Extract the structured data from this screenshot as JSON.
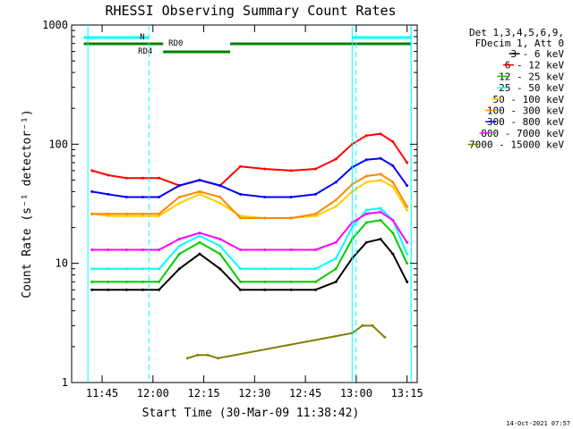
{
  "chart_data": {
    "type": "line",
    "title": "RHESSI Observing Summary Count Rates",
    "xlabel": "Start Time (30-Mar-09 11:38:42)",
    "ylabel": "Count Rate (s⁻¹ detector⁻¹)",
    "yscale": "log",
    "ylim": [
      1,
      1000
    ],
    "xlim_minutes": [
      11.6,
      13.3
    ],
    "x_ticks": [
      "11:45",
      "12:00",
      "12:15",
      "12:30",
      "12:45",
      "13:00",
      "13:15"
    ],
    "y_ticks": [
      "1",
      "10",
      "100",
      "1000"
    ],
    "legend_header": [
      "Det 1,3,4,5,6,9,",
      "FDecim 1, Att 0"
    ],
    "legend_placement": "right",
    "timestamp": "14-Oct-2021 07:57",
    "series": [
      {
        "name": "3 - 6 keV",
        "color": "#000000",
        "times": [
          11.7,
          11.78,
          11.87,
          11.95,
          12.03,
          12.13,
          12.23,
          12.33,
          12.43,
          12.55,
          12.68,
          12.8,
          12.9,
          12.98,
          13.05,
          13.12,
          13.18,
          13.25
        ],
        "values": [
          6,
          6,
          6,
          6,
          6,
          9,
          12,
          9,
          6,
          6,
          6,
          6,
          7,
          11,
          15,
          16,
          12,
          7
        ]
      },
      {
        "name": "6 - 12 keV",
        "color": "#ff0000",
        "times": [
          11.7,
          11.78,
          11.87,
          11.95,
          12.03,
          12.13,
          12.23,
          12.33,
          12.43,
          12.55,
          12.68,
          12.8,
          12.9,
          12.98,
          13.05,
          13.12,
          13.18,
          13.25
        ],
        "values": [
          60,
          55,
          52,
          52,
          52,
          45,
          50,
          45,
          65,
          62,
          60,
          62,
          75,
          100,
          118,
          122,
          105,
          70
        ]
      },
      {
        "name": "12 - 25 keV",
        "color": "#00cc00",
        "times": [
          11.7,
          11.78,
          11.87,
          11.95,
          12.03,
          12.13,
          12.23,
          12.33,
          12.43,
          12.55,
          12.68,
          12.8,
          12.9,
          12.98,
          13.05,
          13.12,
          13.18,
          13.25
        ],
        "values": [
          7,
          7,
          7,
          7,
          7,
          12,
          15,
          12,
          7,
          7,
          7,
          7,
          9,
          16,
          22,
          23,
          18,
          10
        ]
      },
      {
        "name": "25 - 50 keV",
        "color": "#00ffff",
        "times": [
          11.7,
          11.78,
          11.87,
          11.95,
          12.03,
          12.13,
          12.23,
          12.33,
          12.43,
          12.55,
          12.68,
          12.8,
          12.9,
          12.98,
          13.05,
          13.12,
          13.18,
          13.25
        ],
        "values": [
          9,
          9,
          9,
          9,
          9,
          14,
          17,
          14,
          9,
          9,
          9,
          9,
          11,
          20,
          28,
          29,
          23,
          12
        ]
      },
      {
        "name": "50 - 100 keV",
        "color": "#ffcc00",
        "times": [
          11.7,
          11.78,
          11.87,
          11.95,
          12.03,
          12.13,
          12.23,
          12.33,
          12.43,
          12.55,
          12.68,
          12.8,
          12.9,
          12.98,
          13.05,
          13.12,
          13.18,
          13.25
        ],
        "values": [
          26,
          25,
          25,
          25,
          25,
          32,
          38,
          32,
          25,
          24,
          24,
          25,
          30,
          40,
          48,
          50,
          44,
          28
        ]
      },
      {
        "name": "100 - 300 keV",
        "color": "#ff8800",
        "times": [
          11.7,
          11.78,
          11.87,
          11.95,
          12.03,
          12.13,
          12.23,
          12.33,
          12.43,
          12.55,
          12.68,
          12.8,
          12.9,
          12.98,
          13.05,
          13.12,
          13.18,
          13.25
        ],
        "values": [
          26,
          26,
          26,
          26,
          26,
          36,
          40,
          36,
          24,
          24,
          24,
          26,
          34,
          46,
          54,
          56,
          48,
          30
        ]
      },
      {
        "name": "300 - 800 keV",
        "color": "#0000ff",
        "times": [
          11.7,
          11.78,
          11.87,
          11.95,
          12.03,
          12.13,
          12.23,
          12.33,
          12.43,
          12.55,
          12.68,
          12.8,
          12.9,
          12.98,
          13.05,
          13.12,
          13.18,
          13.25
        ],
        "values": [
          40,
          38,
          36,
          36,
          36,
          45,
          50,
          45,
          38,
          36,
          36,
          38,
          48,
          64,
          74,
          76,
          66,
          45
        ]
      },
      {
        "name": "800 - 7000 keV",
        "color": "#ff00ff",
        "times": [
          11.7,
          11.78,
          11.87,
          11.95,
          12.03,
          12.13,
          12.23,
          12.33,
          12.43,
          12.55,
          12.68,
          12.8,
          12.9,
          12.98,
          13.05,
          13.12,
          13.18,
          13.25
        ],
        "values": [
          13,
          13,
          13,
          13,
          13,
          16,
          18,
          16,
          13,
          13,
          13,
          13,
          15,
          22,
          26,
          27,
          23,
          15
        ]
      },
      {
        "name": "7000 - 15000 keV",
        "color": "#808000",
        "times": [
          12.17,
          12.22,
          12.27,
          12.32,
          12.98,
          13.03,
          13.08,
          13.14
        ],
        "values": [
          1.6,
          1.7,
          1.7,
          1.6,
          2.6,
          3.0,
          3.0,
          2.4
        ]
      }
    ],
    "vlines_solid": [
      11.68,
      12.98,
      13.27
    ],
    "vlines_dashed": [
      11.98,
      13.0,
      13.27
    ],
    "status_bars": [
      {
        "label": "N",
        "color": "#00ffff",
        "segments": [
          [
            11.66,
            11.98
          ],
          [
            12.98,
            13.27
          ]
        ],
        "level": "top"
      },
      {
        "label": "RD0",
        "color": "#008000",
        "segments": [
          [
            11.66,
            12.05
          ],
          [
            12.38,
            13.27
          ]
        ],
        "level": "mid"
      },
      {
        "label": "RD4",
        "color": "#008000",
        "segments": [
          [
            12.05,
            12.38
          ]
        ],
        "level": "low"
      }
    ]
  }
}
